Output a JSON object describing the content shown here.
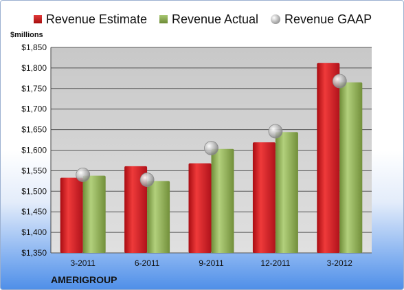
{
  "legend": {
    "estimate": "Revenue Estimate",
    "actual": "Revenue Actual",
    "gaap": "Revenue GAAP"
  },
  "unit_label": "$millions",
  "company": "AMERIGROUP",
  "colors": {
    "estimate": "#c8102e",
    "actual": "#8aa84e",
    "gaap": "#b0b0b0",
    "plot_bg": "#cfcfcf"
  },
  "chart_data": {
    "type": "bar",
    "categories": [
      "3-2011",
      "6-2011",
      "9-2011",
      "12-2011",
      "3-2012"
    ],
    "series": [
      {
        "name": "Revenue Estimate",
        "values": [
          1533,
          1561,
          1568,
          1619,
          1812
        ]
      },
      {
        "name": "Revenue Actual",
        "values": [
          1538,
          1525,
          1603,
          1644,
          1765
        ]
      },
      {
        "name": "Revenue GAAP",
        "type": "scatter",
        "values": [
          1540,
          1528,
          1605,
          1646,
          1768
        ]
      }
    ],
    "ylim": [
      1350,
      1850
    ],
    "yticks": [
      1350,
      1400,
      1450,
      1500,
      1550,
      1600,
      1650,
      1700,
      1750,
      1800,
      1850
    ],
    "ytick_labels": [
      "$1,350",
      "$1,400",
      "$1,450",
      "$1,500",
      "$1,550",
      "$1,600",
      "$1,650",
      "$1,700",
      "$1,750",
      "$1,800",
      "$1,850"
    ],
    "grid": true,
    "legend_position": "top"
  }
}
